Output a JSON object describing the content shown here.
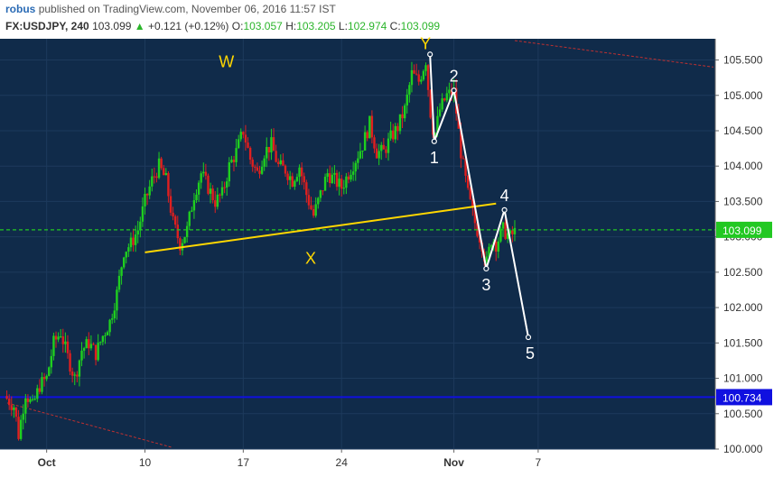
{
  "header": {
    "author": "robus",
    "published": "published on TradingView.com, November 06, 2016 11:57 IST",
    "symbol": "FX:USDJPY, 240",
    "last": "103.099",
    "change_arrow": "▲",
    "change": "+0.121 (+0.12%)",
    "o_label": "O:",
    "o_value": "103.057",
    "h_label": "H:",
    "h_value": "103.205",
    "l_label": "L:",
    "l_value": "102.974",
    "c_label": "C:",
    "c_value": "103.099"
  },
  "colors": {
    "background": "#102b4a",
    "candle_up": "#1fcf1f",
    "candle_down": "#e01f1f",
    "price_line": "#22c822",
    "support_line": "#1010e0",
    "trendline": "#ffd700",
    "wave_line": "#ffffff",
    "channel": "#c03030"
  },
  "chart_data": {
    "type": "candlestick",
    "symbol": "USDJPY",
    "timeframe": "240",
    "ylim": [
      100.0,
      105.8
    ],
    "yticks": [
      "100.000",
      "100.500",
      "101.000",
      "101.500",
      "102.000",
      "102.500",
      "103.000",
      "103.500",
      "104.000",
      "104.500",
      "105.000",
      "105.500"
    ],
    "xlabels": [
      "Oct",
      "10",
      "17",
      "24",
      "Nov",
      "7"
    ],
    "xlabel_days": [
      3,
      10,
      17,
      24,
      32,
      38
    ],
    "price_labels": [
      {
        "name": "last-price",
        "value": 103.099,
        "text": "103.099"
      },
      {
        "name": "support-level",
        "value": 100.734,
        "text": "100.734"
      }
    ],
    "price_path": [
      [
        0.0,
        100.75
      ],
      [
        0.7,
        100.6
      ],
      [
        1.0,
        100.2
      ],
      [
        1.5,
        100.8
      ],
      [
        2.0,
        100.6
      ],
      [
        2.5,
        100.9
      ],
      [
        3.0,
        101.0
      ],
      [
        3.5,
        101.5
      ],
      [
        4.0,
        101.65
      ],
      [
        4.5,
        101.3
      ],
      [
        5.0,
        101.0
      ],
      [
        5.5,
        101.4
      ],
      [
        6.0,
        101.5
      ],
      [
        6.5,
        101.35
      ],
      [
        7.0,
        101.6
      ],
      [
        7.5,
        101.8
      ],
      [
        8.0,
        102.2
      ],
      [
        8.5,
        102.8
      ],
      [
        9.0,
        102.9
      ],
      [
        9.5,
        103.1
      ],
      [
        10.0,
        103.5
      ],
      [
        10.5,
        103.8
      ],
      [
        11.0,
        104.0
      ],
      [
        11.5,
        103.8
      ],
      [
        12.0,
        103.2
      ],
      [
        12.5,
        102.9
      ],
      [
        13.0,
        103.1
      ],
      [
        13.5,
        103.6
      ],
      [
        14.0,
        103.9
      ],
      [
        14.5,
        103.7
      ],
      [
        15.0,
        103.5
      ],
      [
        15.5,
        103.6
      ],
      [
        16.0,
        104.0
      ],
      [
        16.5,
        104.2
      ],
      [
        17.0,
        104.5
      ],
      [
        17.5,
        104.1
      ],
      [
        18.0,
        103.9
      ],
      [
        18.5,
        104.2
      ],
      [
        19.0,
        104.3
      ],
      [
        19.5,
        104.0
      ],
      [
        20.0,
        103.95
      ],
      [
        20.5,
        103.8
      ],
      [
        21.0,
        104.0
      ],
      [
        21.5,
        103.6
      ],
      [
        22.0,
        103.3
      ],
      [
        22.5,
        103.6
      ],
      [
        23.0,
        103.9
      ],
      [
        23.5,
        103.8
      ],
      [
        24.0,
        103.7
      ],
      [
        24.5,
        103.9
      ],
      [
        25.0,
        104.1
      ],
      [
        25.5,
        104.3
      ],
      [
        26.0,
        104.6
      ],
      [
        26.5,
        104.2
      ],
      [
        27.0,
        104.2
      ],
      [
        27.5,
        104.4
      ],
      [
        28.0,
        104.55
      ],
      [
        28.5,
        104.8
      ],
      [
        29.0,
        105.3
      ],
      [
        29.5,
        105.2
      ],
      [
        30.0,
        105.5
      ],
      [
        30.3,
        104.8
      ],
      [
        30.6,
        104.4
      ],
      [
        31.0,
        104.8
      ],
      [
        31.5,
        105.0
      ],
      [
        32.0,
        105.05
      ],
      [
        32.5,
        104.2
      ],
      [
        33.0,
        103.6
      ],
      [
        33.5,
        103.2
      ],
      [
        34.0,
        102.9
      ],
      [
        34.3,
        102.6
      ],
      [
        34.7,
        103.0
      ],
      [
        35.0,
        102.9
      ],
      [
        35.5,
        103.1
      ],
      [
        36.0,
        103.0
      ],
      [
        36.5,
        103.1
      ]
    ],
    "annotations": {
      "trendline_x": [
        10.0,
        35.0
      ],
      "trendline_y": [
        102.78,
        103.47
      ],
      "wave_x": [
        30.3,
        30.6,
        32.0,
        34.3,
        35.6,
        37.3
      ],
      "wave_y": [
        105.58,
        104.35,
        105.07,
        102.55,
        103.38,
        101.58
      ],
      "wave_labels": [
        "Y",
        "1",
        "2",
        "3",
        "4",
        "5"
      ],
      "wxy_labels": [
        "W",
        "X"
      ],
      "wxy_x": [
        15.8,
        21.8
      ],
      "wxy_y": [
        105.4,
        102.62
      ]
    }
  }
}
